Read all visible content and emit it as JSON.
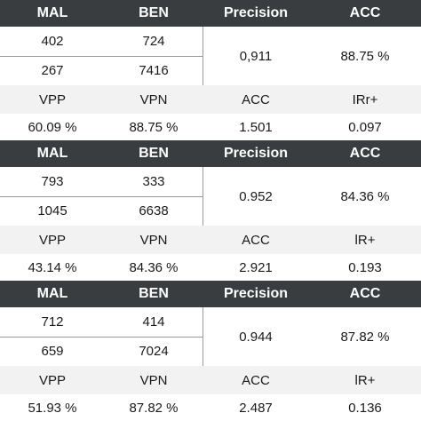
{
  "blocks": [
    {
      "header": [
        "MAL",
        "BEN",
        "Precision",
        "ACC"
      ],
      "matrix": [
        [
          "402",
          "724"
        ],
        [
          "267",
          "7416"
        ]
      ],
      "precision": "0,911",
      "acc": "88.75 %",
      "metric_header": [
        "VPP",
        "VPN",
        "ACC",
        "IRr+"
      ],
      "metric_values": [
        "60.09 %",
        "88.75 %",
        "1.501",
        "0.097"
      ]
    },
    {
      "header": [
        "MAL",
        "BEN",
        "Precision",
        "ACC"
      ],
      "matrix": [
        [
          "793",
          "333"
        ],
        [
          "1045",
          "6638"
        ]
      ],
      "precision": "0.952",
      "acc": "84.36 %",
      "metric_header": [
        "VPP",
        "VPN",
        "ACC",
        "lR+"
      ],
      "metric_values": [
        "43.14 %",
        "84.36 %",
        "2.921",
        "0.193"
      ]
    },
    {
      "header": [
        "MAL",
        "BEN",
        "Precision",
        "ACC"
      ],
      "matrix": [
        [
          "712",
          "414"
        ],
        [
          "659",
          "7024"
        ]
      ],
      "precision": "0.944",
      "acc": "87.82 %",
      "metric_header": [
        "VPP",
        "VPN",
        "ACC",
        "lR+"
      ],
      "metric_values": [
        "51.93 %",
        "87.82 %",
        "2.487",
        "0.136"
      ]
    }
  ]
}
